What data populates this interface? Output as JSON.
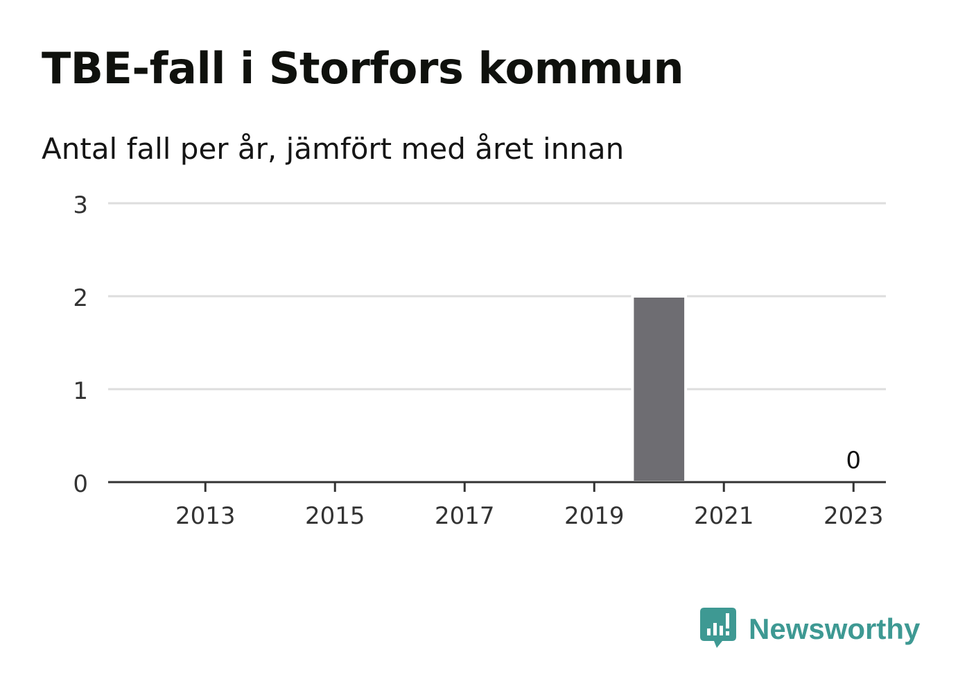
{
  "header": {
    "title": "TBE-fall i Storfors kommun",
    "subtitle": "Antal fall per år, jämfört med året innan"
  },
  "logo": {
    "name": "Newsworthy",
    "icon": "newsworthy-bar-chart-icon",
    "color": "#3e9993"
  },
  "colors": {
    "bar": "#6e6d72",
    "grid": "#dddddd",
    "axis": "#333333",
    "tick_text": "#333333"
  },
  "chart_data": {
    "type": "bar",
    "categories": [
      "2012",
      "2013",
      "2014",
      "2015",
      "2016",
      "2017",
      "2018",
      "2019",
      "2020",
      "2021",
      "2022",
      "2023"
    ],
    "values": [
      0,
      0,
      0,
      0,
      0,
      0,
      0,
      0,
      2,
      0,
      0,
      0
    ],
    "x_tick_labels": [
      "2013",
      "2015",
      "2017",
      "2019",
      "2021",
      "2023"
    ],
    "y_ticks": [
      0,
      1,
      2,
      3
    ],
    "ylim": [
      0,
      3
    ],
    "data_labels": [
      {
        "category": "2023",
        "text": "0"
      }
    ],
    "grid": true,
    "xlabel": "",
    "ylabel": ""
  }
}
